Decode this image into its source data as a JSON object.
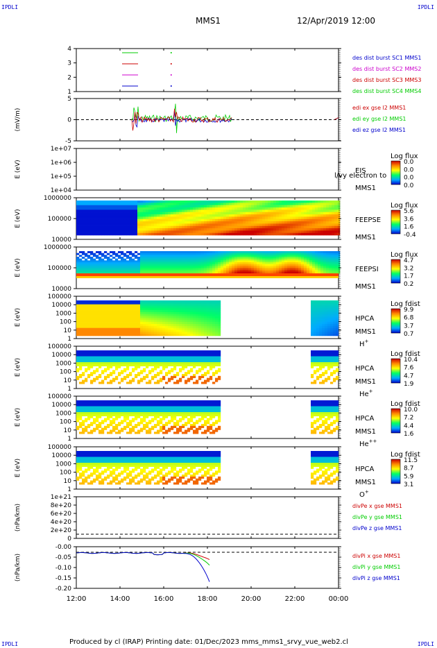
{
  "corners": {
    "tl": "IPDLI",
    "tr": "IPDLI",
    "bl": "IPDLI",
    "br": "IPDLI"
  },
  "header": {
    "spacecraft": "MMS1",
    "datetime": "12/Apr/2019 12:00"
  },
  "footer": "Produced by cl (IRAP)   Printing date: 01/Dec/2023   mms_mms1_srvy_vue_web2.cl",
  "x_ticks": [
    "12:00",
    "14:00",
    "16:00",
    "18:00",
    "20:00",
    "22:00",
    "00:00"
  ],
  "colors": {
    "mms1": "#0000cc",
    "mms2": "#cc00cc",
    "mms3": "#cc0000",
    "mms4": "#00cc00",
    "x": "#cc0000",
    "y": "#00cc00",
    "z": "#0000cc"
  },
  "chart_data": [
    {
      "type": "line",
      "name": "burst",
      "yticks": [
        "4",
        "3",
        "2",
        "1"
      ],
      "legend": [
        "des dist burst SC1 MMS1",
        "des dist burst SC2 MMS2",
        "des dist burst SC3 MMS3",
        "des dist burst SC4 MMS4"
      ]
    },
    {
      "type": "line",
      "name": "edi",
      "ylabel": "(mV/m)",
      "yticks": [
        "5",
        "0",
        "-5"
      ],
      "legend": [
        "edi ex gse l2 MMS1",
        "edi ey gse l2 MMS1",
        "edi ez gse l2 MMS1"
      ]
    },
    {
      "type": "heatmap",
      "name": "eis",
      "ylabel": "E (eV)",
      "yticks": [
        "1e+07",
        "1e+06",
        "1e+05",
        "1e+04"
      ],
      "label": "EIS",
      "sublabel": "MMS1",
      "overlay": "l/vy electron to",
      "cb_title": "Log flux",
      "cb_ticks": [
        "0.0",
        "0.0",
        "0.0",
        "0.0"
      ]
    },
    {
      "type": "heatmap",
      "name": "feepse",
      "ylabel": "E (eV)",
      "yticks": [
        "1000000",
        "100000",
        "10000"
      ],
      "label": "FEEPSE",
      "sublabel": "MMS1",
      "cb_title": "Log flux",
      "cb_ticks": [
        "5.6",
        "3.6",
        "1.6",
        "-0.4"
      ]
    },
    {
      "type": "heatmap",
      "name": "feepsi",
      "ylabel": "E (eV)",
      "yticks": [
        "1000000",
        "100000",
        "10000"
      ],
      "label": "FEEPSI",
      "sublabel": "MMS1",
      "cb_title": "Log flux",
      "cb_ticks": [
        "4.7",
        "3.2",
        "1.7",
        "0.2"
      ]
    },
    {
      "type": "heatmap",
      "name": "hpca-h",
      "ylabel": "E (eV)",
      "yticks": [
        "100000",
        "10000",
        "1000",
        "100",
        "10",
        "1"
      ],
      "label": "HPCA",
      "sublabel": "MMS1",
      "species": "H",
      "species_sup": "+",
      "cb_title": "Log fdist",
      "cb_ticks": [
        "9.9",
        "6.8",
        "3.7",
        "0.7"
      ]
    },
    {
      "type": "heatmap",
      "name": "hpca-he",
      "ylabel": "E (eV)",
      "yticks": [
        "100000",
        "10000",
        "1000",
        "100",
        "10",
        "1"
      ],
      "label": "HPCA",
      "sublabel": "MMS1",
      "species": "He",
      "species_sup": "+",
      "cb_title": "Log fdist",
      "cb_ticks": [
        "10.4",
        "7.6",
        "4.7",
        "1.9"
      ]
    },
    {
      "type": "heatmap",
      "name": "hpca-hepp",
      "ylabel": "E (eV)",
      "yticks": [
        "100000",
        "10000",
        "1000",
        "100",
        "10",
        "1"
      ],
      "label": "HPCA",
      "sublabel": "MMS1",
      "species": "He",
      "species_sup": "++",
      "cb_title": "Log fdist",
      "cb_ticks": [
        "10.0",
        "7.2",
        "4.4",
        "1.6"
      ]
    },
    {
      "type": "heatmap",
      "name": "hpca-o",
      "ylabel": "E (eV)",
      "yticks": [
        "100000",
        "10000",
        "1000",
        "100",
        "10",
        "1"
      ],
      "label": "HPCA",
      "sublabel": "MMS1",
      "species": "O",
      "species_sup": "+",
      "cb_title": "Log fdist",
      "cb_ticks": [
        "11.5",
        "8.7",
        "5.9",
        "3.1"
      ]
    },
    {
      "type": "line",
      "name": "divpe",
      "ylabel": "(nPa/km)",
      "yticks": [
        "1e+21",
        "8e+20",
        "6e+20",
        "4e+20",
        "2e+20",
        "0"
      ],
      "legend": [
        "divPe x gse MMS1",
        "divPe y gse MMS1",
        "divPe z gse MMS1"
      ]
    },
    {
      "type": "line",
      "name": "divpi",
      "ylabel": "(nPa/km)",
      "yticks": [
        "-0.00",
        "-0.05",
        "-0.10",
        "-0.15",
        "-0.20"
      ],
      "legend": [
        "divPi x gse MMS1",
        "divPi y gse MMS1",
        "divPi z gse MMS1"
      ]
    }
  ]
}
